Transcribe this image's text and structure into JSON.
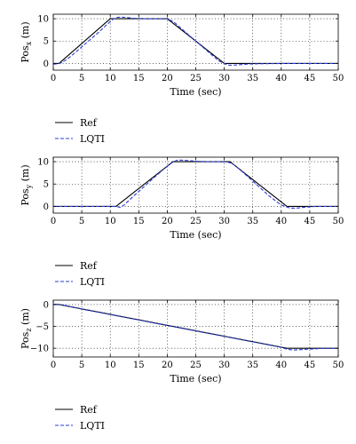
{
  "chart_data": [
    {
      "type": "line",
      "ylabel": "Pos",
      "ylabel_sub": "x",
      "ylabel_unit": " (m)",
      "xlabel": "Time (sec)",
      "xlim": [
        0,
        50
      ],
      "ylim": [
        -1.5,
        11
      ],
      "xticks": [
        0,
        5,
        10,
        15,
        20,
        25,
        30,
        35,
        40,
        45,
        50
      ],
      "yticks": [
        0,
        5,
        10
      ],
      "grid": true,
      "legend_position": "below-left",
      "series": [
        {
          "name": "Ref",
          "color": "#000000",
          "style": "solid",
          "x": [
            0,
            1,
            10,
            20,
            30,
            50
          ],
          "y": [
            0,
            0,
            10,
            10,
            0,
            0
          ]
        },
        {
          "name": "LQTI",
          "color": "#2b3bd6",
          "style": "dashed",
          "x": [
            0,
            0.8,
            1.5,
            2.5,
            4,
            6,
            8,
            9.5,
            10.5,
            11.2,
            12,
            13,
            14,
            16,
            18,
            20,
            20.8,
            21.5,
            23,
            25,
            27,
            29,
            30.5,
            31,
            32,
            33.5,
            35,
            40,
            50
          ],
          "y": [
            -0.15,
            -0.1,
            0.2,
            1.0,
            2.6,
            4.8,
            7.0,
            8.8,
            9.9,
            10.3,
            10.35,
            10.25,
            10.1,
            10.0,
            10.0,
            9.95,
            9.5,
            8.9,
            7.2,
            5.0,
            2.8,
            0.6,
            -0.3,
            -0.4,
            -0.35,
            -0.2,
            -0.1,
            0,
            0
          ]
        }
      ]
    },
    {
      "type": "line",
      "ylabel": "Pos",
      "ylabel_sub": "y",
      "ylabel_unit": " (m)",
      "xlabel": "Time (sec)",
      "xlim": [
        0,
        50
      ],
      "ylim": [
        -1.5,
        11
      ],
      "xticks": [
        0,
        5,
        10,
        15,
        20,
        25,
        30,
        35,
        40,
        45,
        50
      ],
      "yticks": [
        0,
        5,
        10
      ],
      "grid": true,
      "legend_position": "below-left",
      "series": [
        {
          "name": "Ref",
          "color": "#000000",
          "style": "solid",
          "x": [
            0,
            11,
            21,
            31,
            41,
            50
          ],
          "y": [
            0,
            0,
            10,
            10,
            0,
            0
          ]
        },
        {
          "name": "LQTI",
          "color": "#2b3bd6",
          "style": "dashed",
          "x": [
            0,
            10,
            11,
            11.8,
            12.5,
            14,
            16,
            18,
            20,
            21,
            21.8,
            23,
            25,
            27,
            29,
            30.5,
            31.5,
            32.5,
            34,
            36,
            38,
            40,
            41.5,
            42.5,
            44,
            46,
            50
          ],
          "y": [
            0,
            0,
            0,
            -0.25,
            0.4,
            2.2,
            4.5,
            6.8,
            9.0,
            9.9,
            10.35,
            10.3,
            10.1,
            10.0,
            10.0,
            9.95,
            9.5,
            8.5,
            6.8,
            4.5,
            2.2,
            0.3,
            -0.35,
            -0.4,
            -0.2,
            0,
            0
          ]
        }
      ]
    },
    {
      "type": "line",
      "ylabel": "Pos",
      "ylabel_sub": "z",
      "ylabel_unit": " (m)",
      "xlabel": "Time (sec)",
      "xlim": [
        0,
        50
      ],
      "ylim": [
        -12,
        1
      ],
      "xticks": [
        0,
        5,
        10,
        15,
        20,
        25,
        30,
        35,
        40,
        45,
        50
      ],
      "yticks": [
        0,
        -5,
        -10
      ],
      "grid": true,
      "legend_position": "below-left",
      "series": [
        {
          "name": "Ref",
          "color": "#000000",
          "style": "solid",
          "x": [
            0,
            1,
            41,
            50
          ],
          "y": [
            0,
            0,
            -10,
            -10
          ]
        },
        {
          "name": "LQTI",
          "color": "#2b3bd6",
          "style": "dashed",
          "x": [
            0,
            1,
            2,
            4,
            6,
            10,
            20,
            30,
            38,
            40,
            41,
            42,
            43,
            45,
            47,
            50
          ],
          "y": [
            0.05,
            0.05,
            -0.2,
            -0.75,
            -1.3,
            -2.3,
            -4.8,
            -7.3,
            -9.3,
            -9.8,
            -10.2,
            -10.4,
            -10.35,
            -10.2,
            -10.05,
            -10
          ]
        }
      ]
    }
  ]
}
